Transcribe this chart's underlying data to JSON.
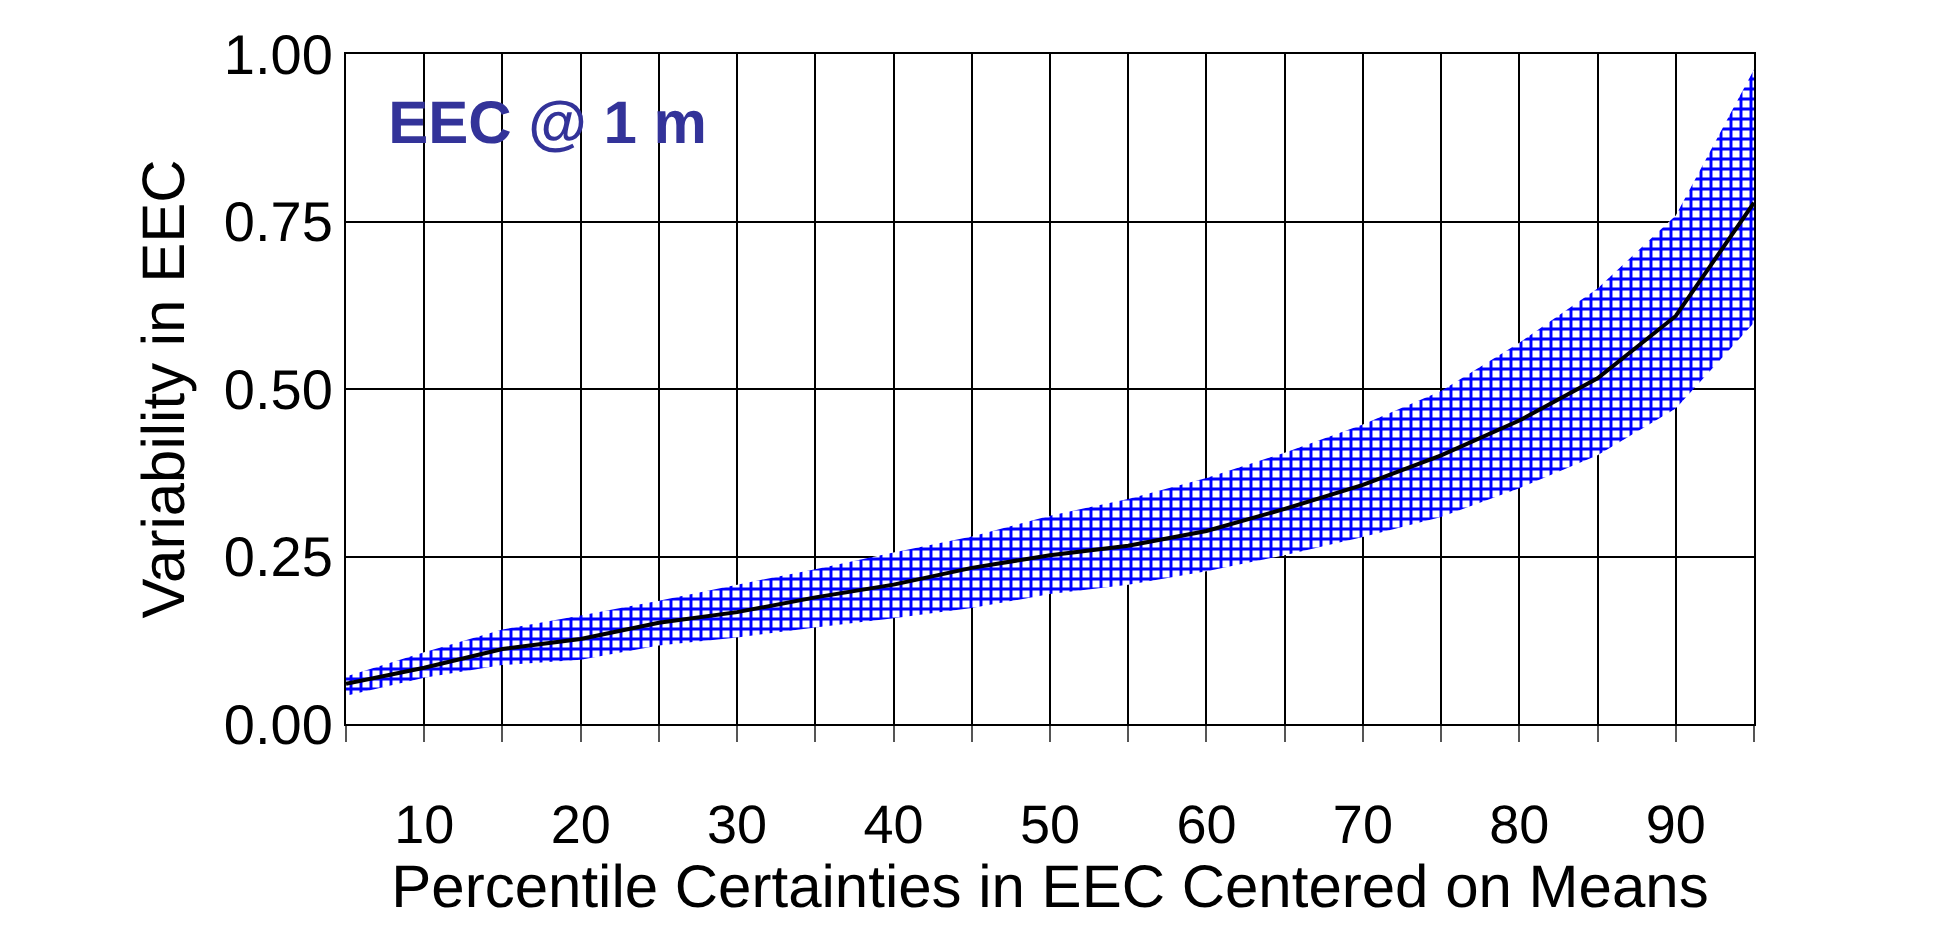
{
  "chart_data": {
    "type": "line",
    "title": "EEC @ 1 m",
    "xlabel": "Percentile Certainties in EEC Centered on Means",
    "ylabel": "Variability in EEC",
    "x": [
      5,
      10,
      15,
      20,
      25,
      30,
      35,
      40,
      45,
      50,
      55,
      60,
      65,
      70,
      75,
      80,
      85,
      90,
      95
    ],
    "series": [
      {
        "color": "#000000",
        "values": [
          0.06,
          0.084,
          0.112,
          0.127,
          0.151,
          0.167,
          0.189,
          0.208,
          0.233,
          0.252,
          0.266,
          0.288,
          0.321,
          0.357,
          0.401,
          0.453,
          0.516,
          0.609,
          0.778
        ],
        "lower": [
          0.042,
          0.069,
          0.088,
          0.096,
          0.117,
          0.129,
          0.144,
          0.158,
          0.173,
          0.194,
          0.208,
          0.228,
          0.252,
          0.279,
          0.309,
          0.352,
          0.401,
          0.471,
          0.599
        ],
        "upper": [
          0.071,
          0.107,
          0.141,
          0.162,
          0.184,
          0.208,
          0.231,
          0.256,
          0.28,
          0.311,
          0.336,
          0.367,
          0.405,
          0.447,
          0.497,
          0.569,
          0.65,
          0.759,
          0.977
        ]
      }
    ],
    "xlim": [
      5,
      95
    ],
    "xticks": [
      {
        "value": 5,
        "label": null
      },
      {
        "value": 10,
        "label": "10"
      },
      {
        "value": 15,
        "label": null
      },
      {
        "value": 20,
        "label": "20"
      },
      {
        "value": 25,
        "label": null
      },
      {
        "value": 30,
        "label": "30"
      },
      {
        "value": 35,
        "label": null
      },
      {
        "value": 40,
        "label": "40"
      },
      {
        "value": 45,
        "label": null
      },
      {
        "value": 50,
        "label": "50"
      },
      {
        "value": 55,
        "label": null
      },
      {
        "value": 60,
        "label": "60"
      },
      {
        "value": 65,
        "label": null
      },
      {
        "value": 70,
        "label": "70"
      },
      {
        "value": 75,
        "label": null
      },
      {
        "value": 80,
        "label": "80"
      },
      {
        "value": 85,
        "label": null
      },
      {
        "value": 90,
        "label": "90"
      },
      {
        "value": 95,
        "label": null
      }
    ],
    "ylim": [
      0,
      1
    ],
    "yticks": [
      {
        "value": 0,
        "label": "0.00"
      },
      {
        "value": 0.25,
        "label": "0.25"
      },
      {
        "value": 0.5,
        "label": "0.50"
      },
      {
        "value": 0.75,
        "label": "0.75"
      },
      {
        "value": 1,
        "label": "1.00"
      }
    ],
    "grid": true,
    "marker": "none",
    "line_style": "solid"
  }
}
